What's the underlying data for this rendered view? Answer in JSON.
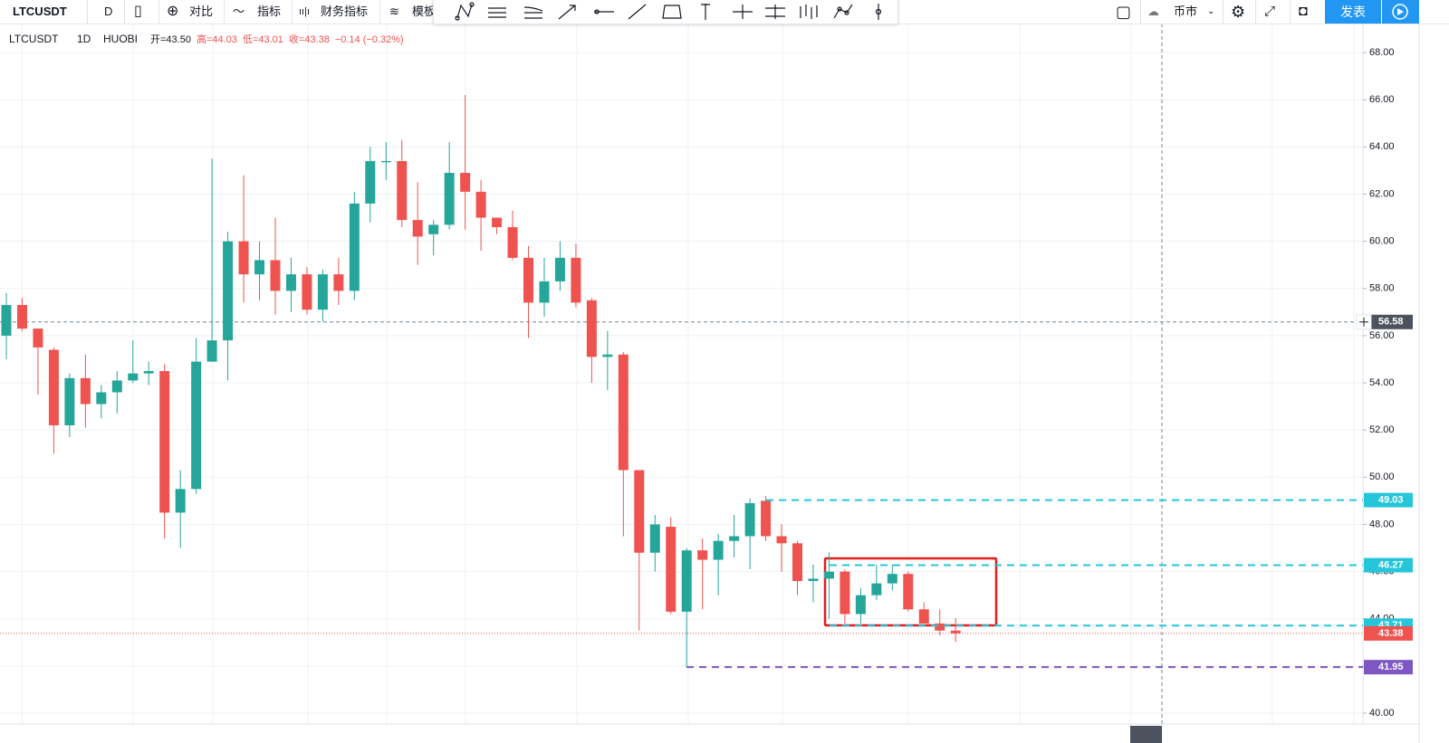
{
  "toolbar": {
    "symbol": "LTCUSDT",
    "interval": "D",
    "compare": "对比",
    "indicators": "指标",
    "financials": "财务指标",
    "templates": "模板",
    "market": "币市",
    "publish": "发表"
  },
  "chart_data": {
    "type": "candlestick",
    "legend": {
      "symbol": "LTCUSDT",
      "interval": "1D",
      "exchange": "HUOBI",
      "fields": [
        "开=43.50",
        "高=44.03",
        "低=43.01",
        "收=43.38",
        "−0.14 (−0.32%)"
      ]
    },
    "open": [
      56.0,
      57.3,
      56.3,
      55.4,
      52.2,
      54.2,
      53.1,
      53.6,
      54.1,
      54.4,
      54.5,
      48.5,
      49.5,
      54.9,
      55.8,
      60.0,
      58.6,
      59.2,
      57.9,
      58.6,
      57.1,
      58.6,
      57.9,
      61.6,
      63.35,
      63.4,
      60.9,
      60.3,
      60.7,
      62.9,
      62.1,
      61.0,
      60.6,
      59.3,
      57.4,
      58.3,
      59.3,
      57.5,
      55.1,
      55.2,
      50.3,
      46.8,
      47.9,
      44.3,
      46.9,
      46.5,
      47.3,
      47.5,
      49.0,
      47.5,
      47.2,
      45.6,
      45.7,
      46.0,
      44.2,
      45.0,
      45.5,
      45.9,
      44.4,
      43.8,
      43.5
    ],
    "high": [
      57.8,
      57.6,
      56.3,
      55.5,
      54.4,
      55.2,
      53.9,
      54.5,
      55.8,
      54.9,
      54.8,
      50.3,
      55.9,
      63.5,
      60.4,
      62.8,
      60.0,
      61.0,
      59.3,
      58.9,
      58.8,
      59.3,
      62.1,
      64.0,
      64.2,
      64.3,
      62.5,
      60.9,
      64.2,
      66.2,
      62.6,
      61.0,
      61.3,
      59.8,
      59.3,
      60.0,
      59.9,
      57.6,
      56.2,
      55.3,
      50.3,
      48.4,
      48.3,
      47.0,
      47.4,
      47.6,
      48.4,
      49.1,
      49.2,
      48.0,
      47.3,
      46.3,
      46.8,
      46.1,
      45.3,
      46.3,
      46.3,
      46.0,
      44.7,
      44.4,
      44.03
    ],
    "low": [
      55.0,
      56.2,
      53.5,
      51.0,
      51.7,
      52.1,
      52.5,
      52.7,
      54.0,
      53.9,
      47.4,
      47.0,
      49.3,
      54.9,
      54.1,
      57.4,
      57.5,
      56.9,
      57.0,
      56.9,
      56.6,
      57.3,
      57.5,
      60.8,
      62.6,
      60.6,
      59.0,
      59.4,
      60.5,
      60.5,
      59.6,
      60.3,
      59.2,
      55.9,
      56.8,
      57.9,
      57.2,
      54.0,
      53.7,
      47.5,
      43.5,
      46.0,
      44.2,
      41.95,
      44.4,
      45.0,
      46.6,
      46.1,
      47.3,
      46.0,
      45.0,
      44.7,
      44.0,
      43.8,
      43.8,
      44.8,
      45.2,
      44.3,
      43.8,
      43.3,
      43.01
    ],
    "close": [
      57.3,
      56.3,
      55.5,
      52.2,
      54.2,
      53.1,
      53.6,
      54.1,
      54.4,
      54.5,
      48.5,
      49.5,
      54.9,
      55.8,
      60.0,
      58.6,
      59.2,
      57.9,
      58.6,
      57.1,
      58.6,
      57.9,
      61.6,
      63.4,
      63.4,
      60.9,
      60.2,
      60.7,
      62.9,
      62.1,
      61.0,
      60.6,
      59.3,
      57.4,
      58.3,
      59.3,
      57.4,
      55.1,
      55.2,
      50.3,
      46.8,
      48.0,
      44.3,
      46.9,
      46.5,
      47.3,
      47.5,
      48.9,
      47.5,
      47.2,
      45.6,
      45.7,
      46.0,
      44.2,
      45.0,
      45.5,
      45.9,
      44.4,
      43.8,
      43.5,
      43.38
    ],
    "up_color": "#26a69a",
    "down_color": "#ef5350",
    "ylim": [
      39.54,
      69.23
    ],
    "yticks": [
      {
        "value": 40,
        "label": "40.00"
      },
      {
        "value": 42,
        "label": "42.00"
      },
      {
        "value": 44,
        "label": "44.00"
      },
      {
        "value": 46,
        "label": "46.00"
      },
      {
        "value": 48,
        "label": "48.00"
      },
      {
        "value": 50,
        "label": "50.00"
      },
      {
        "value": 52,
        "label": "52.00"
      },
      {
        "value": 54,
        "label": "54.00"
      },
      {
        "value": 56,
        "label": "56.00"
      },
      {
        "value": 58,
        "label": "58.00"
      },
      {
        "value": 60,
        "label": "60.00"
      },
      {
        "value": 62,
        "label": "62.00"
      },
      {
        "value": 64,
        "label": "64.00"
      },
      {
        "value": 66,
        "label": "66.00"
      },
      {
        "value": 68,
        "label": "68.00"
      }
    ],
    "grid": true,
    "price_lines": [
      {
        "value": 49.03,
        "label": "49.03",
        "color": "#26c6da"
      },
      {
        "value": 46.27,
        "label": "46.27",
        "color": "#26c6da"
      },
      {
        "value": 43.71,
        "label": "43.71",
        "color": "#26c6da"
      },
      {
        "value": 41.95,
        "label": "41.95",
        "color": "#7e57c2"
      },
      {
        "value": 43.38,
        "label": "43.38",
        "color": "#ef5350"
      }
    ],
    "crosshair": {
      "value": 56.58,
      "label": "56.58"
    }
  }
}
